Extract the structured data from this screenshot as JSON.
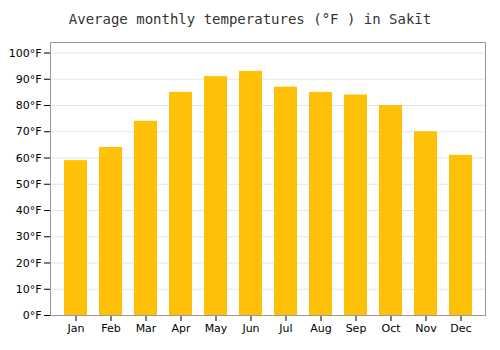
{
  "chart_data": {
    "type": "bar",
    "title": "Average monthly temperatures (°F ) in Sakīt",
    "categories": [
      "Jan",
      "Feb",
      "Mar",
      "Apr",
      "May",
      "Jun",
      "Jul",
      "Aug",
      "Sep",
      "Oct",
      "Nov",
      "Dec"
    ],
    "values": [
      59,
      64,
      74,
      85,
      91,
      93,
      87,
      85,
      84,
      80,
      70,
      61
    ],
    "color": "#FFC107",
    "ylim": [
      0,
      104
    ],
    "yticks": [
      {
        "value": 0,
        "label": "0°F"
      },
      {
        "value": 10,
        "label": "10°F"
      },
      {
        "value": 20,
        "label": "20°F"
      },
      {
        "value": 30,
        "label": "30°F"
      },
      {
        "value": 40,
        "label": "40°F"
      },
      {
        "value": 50,
        "label": "50°F"
      },
      {
        "value": 60,
        "label": "60°F"
      },
      {
        "value": 70,
        "label": "70°F"
      },
      {
        "value": 80,
        "label": "80°F"
      },
      {
        "value": 90,
        "label": "90°F"
      },
      {
        "value": 100,
        "label": "100°F"
      }
    ],
    "grid": true
  }
}
